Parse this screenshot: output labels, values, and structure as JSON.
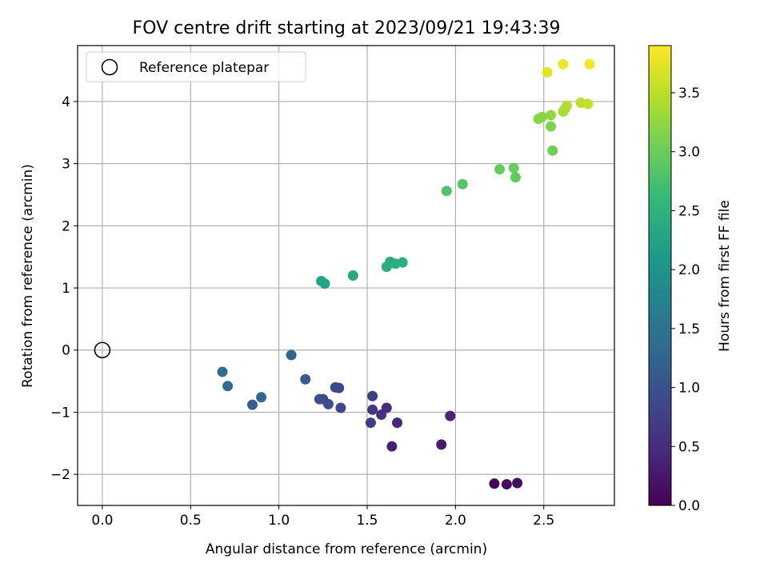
{
  "chart_data": {
    "type": "scatter",
    "title": "FOV centre drift starting at 2023/09/21 19:43:39",
    "xlabel": "Angular distance from reference (arcmin)",
    "ylabel": "Rotation from reference (arcmin)",
    "xlim": [
      -0.14,
      2.9
    ],
    "ylim": [
      -2.5,
      4.9
    ],
    "xticks": [
      0.0,
      0.5,
      1.0,
      1.5,
      2.0,
      2.5
    ],
    "xtick_labels": [
      "0.0",
      "0.5",
      "1.0",
      "1.5",
      "2.0",
      "2.5"
    ],
    "yticks": [
      -2,
      -1,
      0,
      1,
      2,
      3,
      4
    ],
    "ytick_labels": [
      "−2",
      "−1",
      "0",
      "1",
      "2",
      "3",
      "4"
    ],
    "grid": true,
    "legend": {
      "placement": "upper-left",
      "entries": [
        "Reference platepar"
      ]
    },
    "reference_point": {
      "x": 0.0,
      "y": 0.0,
      "marker": "hollow-circle",
      "color": "#000000"
    },
    "colorbar": {
      "label": "Hours from first FF file",
      "range": [
        0.0,
        3.9
      ],
      "ticks": [
        0.0,
        0.5,
        1.0,
        1.5,
        2.0,
        2.5,
        3.0,
        3.5
      ],
      "tick_labels": [
        "0.0",
        "0.5",
        "1.0",
        "1.5",
        "2.0",
        "2.5",
        "3.0",
        "3.5"
      ],
      "colormap": "viridis",
      "colormap_stops": [
        "#440154",
        "#482878",
        "#3e4989",
        "#31688e",
        "#26828e",
        "#1f9e89",
        "#35b779",
        "#6ece58",
        "#b5de2b",
        "#fde725"
      ]
    },
    "points": [
      {
        "x": 2.22,
        "y": -2.15,
        "c": 0.05
      },
      {
        "x": 2.29,
        "y": -2.16,
        "c": 0.1
      },
      {
        "x": 2.35,
        "y": -2.14,
        "c": 0.15
      },
      {
        "x": 1.92,
        "y": -1.52,
        "c": 0.3
      },
      {
        "x": 1.64,
        "y": -1.55,
        "c": 0.35
      },
      {
        "x": 1.97,
        "y": -1.06,
        "c": 0.4
      },
      {
        "x": 1.67,
        "y": -1.17,
        "c": 0.45
      },
      {
        "x": 1.61,
        "y": -0.93,
        "c": 0.5
      },
      {
        "x": 1.58,
        "y": -1.04,
        "c": 0.55
      },
      {
        "x": 1.53,
        "y": -0.96,
        "c": 0.65
      },
      {
        "x": 1.52,
        "y": -1.17,
        "c": 0.7
      },
      {
        "x": 1.53,
        "y": -0.74,
        "c": 0.75
      },
      {
        "x": 1.35,
        "y": -0.93,
        "c": 0.85
      },
      {
        "x": 1.34,
        "y": -0.61,
        "c": 0.85
      },
      {
        "x": 1.32,
        "y": -0.6,
        "c": 0.85
      },
      {
        "x": 1.28,
        "y": -0.87,
        "c": 0.95
      },
      {
        "x": 1.25,
        "y": -0.79,
        "c": 0.9
      },
      {
        "x": 1.23,
        "y": -0.79,
        "c": 0.95
      },
      {
        "x": 1.15,
        "y": -0.47,
        "c": 1.15
      },
      {
        "x": 1.07,
        "y": -0.08,
        "c": 1.25
      },
      {
        "x": 0.9,
        "y": -0.76,
        "c": 1.3
      },
      {
        "x": 0.85,
        "y": -0.88,
        "c": 1.2
      },
      {
        "x": 0.71,
        "y": -0.58,
        "c": 1.35
      },
      {
        "x": 0.68,
        "y": -0.35,
        "c": 1.4
      },
      {
        "x": 1.24,
        "y": 1.11,
        "c": 2.25
      },
      {
        "x": 1.26,
        "y": 1.07,
        "c": 2.25
      },
      {
        "x": 1.42,
        "y": 1.2,
        "c": 2.35
      },
      {
        "x": 1.61,
        "y": 1.34,
        "c": 2.4
      },
      {
        "x": 1.63,
        "y": 1.42,
        "c": 2.4
      },
      {
        "x": 1.66,
        "y": 1.39,
        "c": 2.45
      },
      {
        "x": 1.7,
        "y": 1.41,
        "c": 2.45
      },
      {
        "x": 1.95,
        "y": 2.56,
        "c": 2.8
      },
      {
        "x": 2.04,
        "y": 2.67,
        "c": 2.85
      },
      {
        "x": 2.25,
        "y": 2.91,
        "c": 2.95
      },
      {
        "x": 2.33,
        "y": 2.93,
        "c": 3.0
      },
      {
        "x": 2.34,
        "y": 2.78,
        "c": 2.95
      },
      {
        "x": 2.55,
        "y": 3.21,
        "c": 3.05
      },
      {
        "x": 2.54,
        "y": 3.6,
        "c": 3.15
      },
      {
        "x": 2.47,
        "y": 3.72,
        "c": 3.2
      },
      {
        "x": 2.49,
        "y": 3.75,
        "c": 3.2
      },
      {
        "x": 2.54,
        "y": 3.78,
        "c": 3.25
      },
      {
        "x": 2.61,
        "y": 3.84,
        "c": 3.35
      },
      {
        "x": 2.62,
        "y": 3.88,
        "c": 3.4
      },
      {
        "x": 2.63,
        "y": 3.93,
        "c": 3.45
      },
      {
        "x": 2.71,
        "y": 3.98,
        "c": 3.5
      },
      {
        "x": 2.75,
        "y": 3.96,
        "c": 3.55
      },
      {
        "x": 2.52,
        "y": 4.47,
        "c": 3.75
      },
      {
        "x": 2.61,
        "y": 4.6,
        "c": 3.8
      },
      {
        "x": 2.76,
        "y": 4.6,
        "c": 3.85
      }
    ]
  }
}
